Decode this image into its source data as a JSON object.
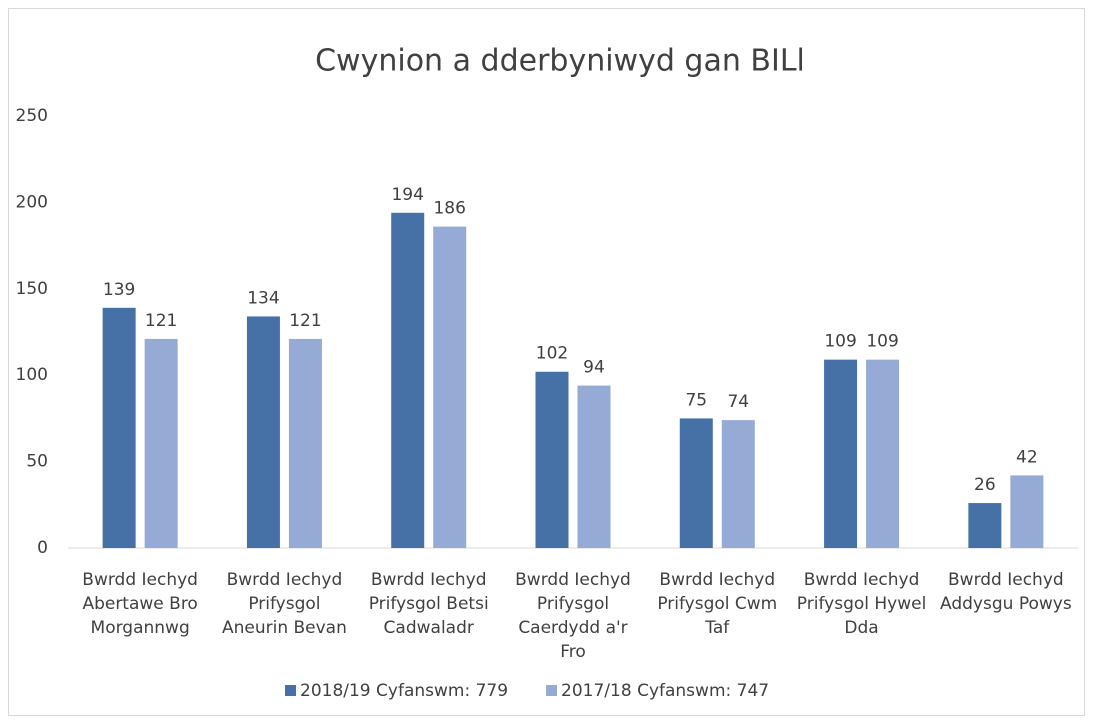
{
  "chart_data": {
    "type": "bar",
    "title": "Cwynion a dderbyniwyd gan BILl",
    "categories": [
      "Bwrdd Iechyd Abertawe Bro Morgannwg",
      "Bwrdd Iechyd Prifysgol Aneurin Bevan",
      "Bwrdd Iechyd Prifysgol Betsi Cadwaladr",
      "Bwrdd Iechyd Prifysgol Caerdydd a'r Fro",
      "Bwrdd Iechyd Prifysgol Cwm Taf",
      "Bwrdd Iechyd Prifysgol Hywel Dda",
      "Bwrdd Iechyd Addysgu Powys"
    ],
    "series": [
      {
        "name": "2018/19 Cyfanswm: 779",
        "color": "#4571a6",
        "values": [
          139,
          134,
          194,
          102,
          75,
          109,
          26
        ]
      },
      {
        "name": "2017/18 Cyfanswm: 747",
        "color": "#95aad4",
        "values": [
          121,
          121,
          186,
          94,
          74,
          109,
          42
        ]
      }
    ],
    "ylim": [
      0,
      250
    ],
    "yticks": [
      0,
      50,
      100,
      150,
      200,
      250
    ],
    "grid": false,
    "legend": "bottom"
  }
}
